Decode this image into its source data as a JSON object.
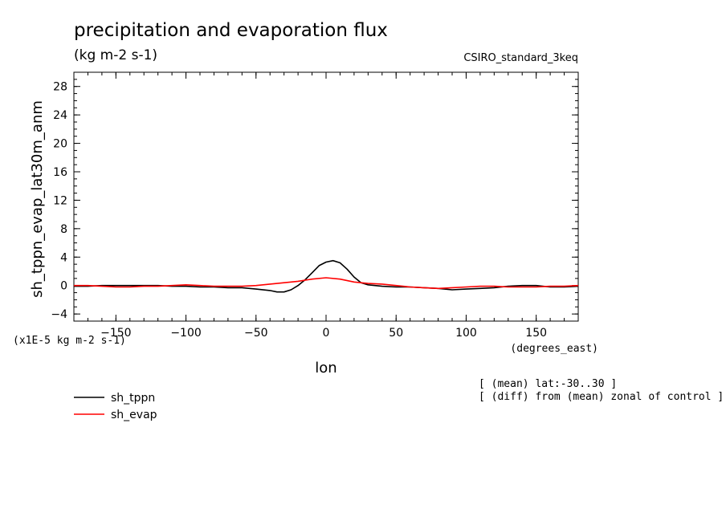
{
  "chart_data": {
    "type": "line",
    "title": "precipitation and evaporation flux",
    "units": "(kg m-2 s-1)",
    "model": "CSIRO_standard_3keq",
    "ylabel": "sh_tppn_evap_lat30m_anm",
    "xlabel": "lon",
    "x_units": "(degrees_east)",
    "y_scale_note": "(x1E-5 kg m-2 s-1)",
    "xlim": [
      -180,
      180
    ],
    "ylim": [
      -5,
      30
    ],
    "x_ticks": [
      -150,
      -100,
      -50,
      0,
      50,
      100,
      150
    ],
    "y_ticks": [
      -4,
      0,
      4,
      8,
      12,
      16,
      20,
      24,
      28
    ],
    "notes": [
      "[ (mean) lat:-30..30 ]",
      "[ (diff) from (mean) zonal of control ]"
    ],
    "legend_position": "bottom-left",
    "series": [
      {
        "name": "sh_tppn",
        "color": "#000000",
        "x": [
          -180,
          -170,
          -160,
          -150,
          -140,
          -130,
          -120,
          -110,
          -100,
          -90,
          -80,
          -70,
          -60,
          -50,
          -40,
          -35,
          -30,
          -25,
          -20,
          -15,
          -10,
          -5,
          0,
          5,
          10,
          15,
          20,
          25,
          30,
          40,
          50,
          60,
          70,
          80,
          90,
          100,
          110,
          120,
          130,
          140,
          150,
          160,
          170,
          180
        ],
        "values": [
          -0.1,
          -0.1,
          0.0,
          0.0,
          0.0,
          0.0,
          0.0,
          -0.1,
          -0.1,
          -0.2,
          -0.2,
          -0.3,
          -0.3,
          -0.5,
          -0.7,
          -0.9,
          -0.9,
          -0.6,
          0.0,
          0.8,
          1.8,
          2.8,
          3.3,
          3.5,
          3.2,
          2.3,
          1.2,
          0.4,
          0.1,
          -0.1,
          -0.2,
          -0.2,
          -0.3,
          -0.4,
          -0.6,
          -0.5,
          -0.4,
          -0.3,
          -0.1,
          0.0,
          0.0,
          -0.2,
          -0.2,
          -0.1
        ]
      },
      {
        "name": "sh_evap",
        "color": "#ff0000",
        "x": [
          -180,
          -170,
          -160,
          -150,
          -140,
          -130,
          -120,
          -110,
          -100,
          -90,
          -80,
          -70,
          -60,
          -50,
          -40,
          -30,
          -20,
          -10,
          0,
          10,
          20,
          30,
          40,
          50,
          60,
          70,
          80,
          90,
          100,
          110,
          120,
          130,
          140,
          150,
          160,
          170,
          180
        ],
        "values": [
          0.0,
          0.0,
          -0.1,
          -0.2,
          -0.2,
          -0.1,
          -0.1,
          0.0,
          0.1,
          0.0,
          -0.1,
          -0.1,
          -0.1,
          0.0,
          0.2,
          0.4,
          0.6,
          0.9,
          1.1,
          0.9,
          0.5,
          0.3,
          0.2,
          0.0,
          -0.2,
          -0.3,
          -0.4,
          -0.3,
          -0.2,
          -0.1,
          -0.1,
          -0.2,
          -0.2,
          -0.2,
          -0.1,
          -0.1,
          0.0
        ]
      }
    ]
  }
}
